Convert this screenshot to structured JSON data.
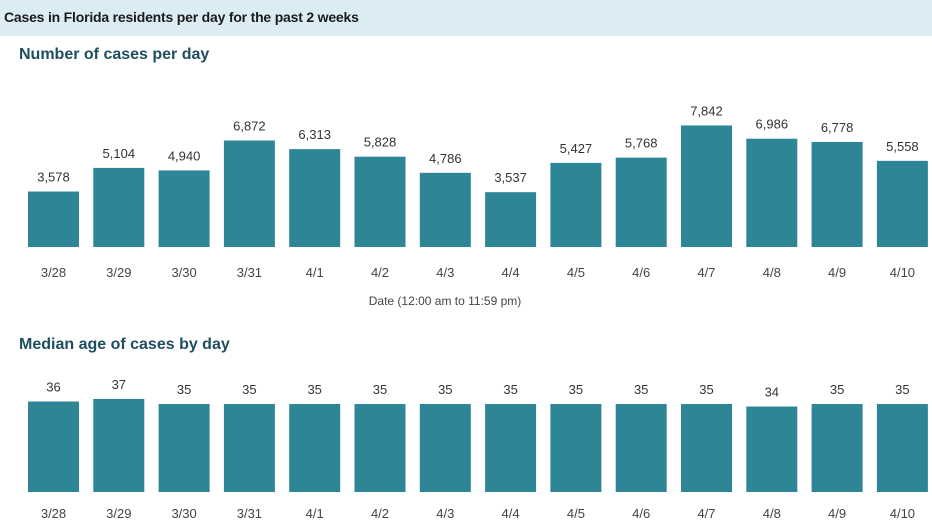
{
  "page": {
    "banner_title": "Cases in Florida residents per day for the past 2 weeks"
  },
  "colors": {
    "bar": "#2e8596",
    "banner_bg": "#dcecf3",
    "title_text": "#1f4e5f"
  },
  "chart_data": [
    {
      "type": "bar",
      "title": "Number of cases per day",
      "xlabel": "Date (12:00 am to 11:59 pm)",
      "ylabel": "",
      "categories": [
        "3/28",
        "3/29",
        "3/30",
        "3/31",
        "4/1",
        "4/2",
        "4/3",
        "4/4",
        "4/5",
        "4/6",
        "4/7",
        "4/8",
        "4/9",
        "4/10"
      ],
      "values": [
        3578,
        5104,
        4940,
        6872,
        6313,
        5828,
        4786,
        3537,
        5427,
        5768,
        7842,
        6986,
        6778,
        5558
      ],
      "value_labels": [
        "3,578",
        "5,104",
        "4,940",
        "6,872",
        "6,313",
        "5,828",
        "4,786",
        "3,537",
        "5,427",
        "5,768",
        "7,842",
        "6,986",
        "6,778",
        "5,558"
      ],
      "ylim": [
        0,
        8000
      ],
      "grid": false
    },
    {
      "type": "bar",
      "title": "Median age of cases by day",
      "xlabel": "",
      "ylabel": "",
      "categories": [
        "3/28",
        "3/29",
        "3/30",
        "3/31",
        "4/1",
        "4/2",
        "4/3",
        "4/4",
        "4/5",
        "4/6",
        "4/7",
        "4/8",
        "4/9",
        "4/10"
      ],
      "values": [
        36,
        37,
        35,
        35,
        35,
        35,
        35,
        35,
        35,
        35,
        35,
        34,
        35,
        35
      ],
      "value_labels": [
        "36",
        "37",
        "35",
        "35",
        "35",
        "35",
        "35",
        "35",
        "35",
        "35",
        "35",
        "34",
        "35",
        "35"
      ],
      "ylim": [
        0,
        37
      ],
      "grid": false
    }
  ]
}
